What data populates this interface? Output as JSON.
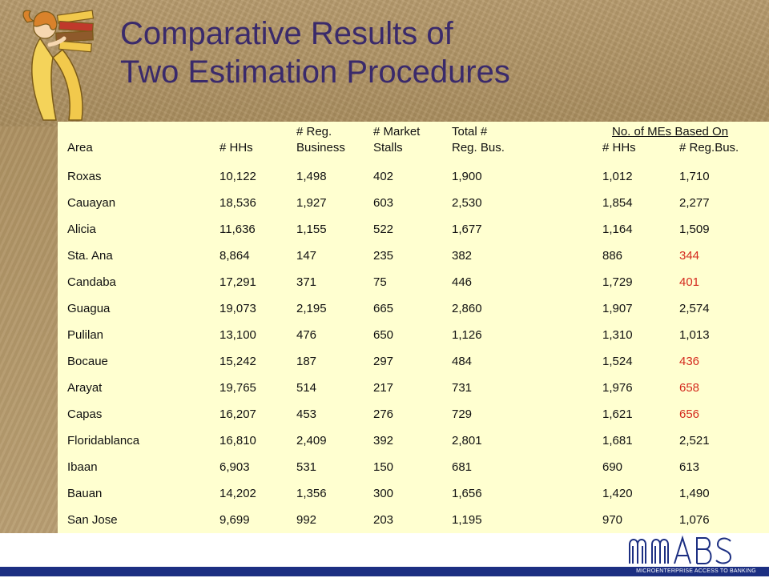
{
  "slide": {
    "title_line1": "Comparative Results of",
    "title_line2": "Two Estimation Procedures"
  },
  "table": {
    "headers": {
      "area": "Area",
      "hhs": "# HHs",
      "reg_business_top": "# Reg.",
      "reg_business_bottom": "Business",
      "market_stalls_top": "# Market",
      "market_stalls_bottom": "Stalls",
      "total_reg_top": "Total #",
      "total_reg_bottom": "Reg. Bus.",
      "based_on": "No. of MEs Based On",
      "mes_hhs": "# HHs",
      "mes_regbus": "# Reg.Bus."
    },
    "rows": [
      {
        "area": "Roxas",
        "hhs": "10,122",
        "reg": "1,498",
        "stalls": "402",
        "total": "1,900",
        "me_hhs": "1,012",
        "me_reg": "1,710",
        "me_reg_red": false
      },
      {
        "area": "Cauayan",
        "hhs": "18,536",
        "reg": "1,927",
        "stalls": "603",
        "total": "2,530",
        "me_hhs": "1,854",
        "me_reg": "2,277",
        "me_reg_red": false
      },
      {
        "area": "Alicia",
        "hhs": "11,636",
        "reg": "1,155",
        "stalls": "522",
        "total": "1,677",
        "me_hhs": "1,164",
        "me_reg": "1,509",
        "me_reg_red": false
      },
      {
        "area": "Sta. Ana",
        "hhs": "8,864",
        "reg": "147",
        "stalls": "235",
        "total": "382",
        "me_hhs": "886",
        "me_reg": "344",
        "me_reg_red": true
      },
      {
        "area": "Candaba",
        "hhs": "17,291",
        "reg": "371",
        "stalls": "75",
        "total": "446",
        "me_hhs": "1,729",
        "me_reg": "401",
        "me_reg_red": true
      },
      {
        "area": "Guagua",
        "hhs": "19,073",
        "reg": "2,195",
        "stalls": "665",
        "total": "2,860",
        "me_hhs": "1,907",
        "me_reg": "2,574",
        "me_reg_red": false
      },
      {
        "area": "Pulilan",
        "hhs": "13,100",
        "reg": "476",
        "stalls": "650",
        "total": "1,126",
        "me_hhs": "1,310",
        "me_reg": "1,013",
        "me_reg_red": false
      },
      {
        "area": "Bocaue",
        "hhs": "15,242",
        "reg": "187",
        "stalls": "297",
        "total": "484",
        "me_hhs": "1,524",
        "me_reg": "436",
        "me_reg_red": true
      },
      {
        "area": "Arayat",
        "hhs": "19,765",
        "reg": "514",
        "stalls": "217",
        "total": "731",
        "me_hhs": "1,976",
        "me_reg": "658",
        "me_reg_red": true
      },
      {
        "area": "Capas",
        "hhs": "16,207",
        "reg": "453",
        "stalls": "276",
        "total": "729",
        "me_hhs": "1,621",
        "me_reg": "656",
        "me_reg_red": true
      },
      {
        "area": "Floridablanca",
        "hhs": "16,810",
        "reg": "2,409",
        "stalls": "392",
        "total": "2,801",
        "me_hhs": "1,681",
        "me_reg": "2,521",
        "me_reg_red": false
      },
      {
        "area": "Ibaan",
        "hhs": "6,903",
        "reg": "531",
        "stalls": "150",
        "total": "681",
        "me_hhs": "690",
        "me_reg": "613",
        "me_reg_red": false
      },
      {
        "area": "Bauan",
        "hhs": "14,202",
        "reg": "1,356",
        "stalls": "300",
        "total": "1,656",
        "me_hhs": "1,420",
        "me_reg": "1,490",
        "me_reg_red": false
      },
      {
        "area": "San Jose",
        "hhs": "9,699",
        "reg": "992",
        "stalls": "203",
        "total": "1,195",
        "me_hhs": "970",
        "me_reg": "1,076",
        "me_reg_red": false
      }
    ]
  },
  "logo": {
    "mark": "MABS",
    "tagline": "MICROENTERPRISE ACCESS TO BANKING SERVICES"
  },
  "colors": {
    "title": "#3a2a6b",
    "panel": "#ffffd0",
    "highlight_red": "#d42a1e",
    "bar": "#1c2f82"
  }
}
